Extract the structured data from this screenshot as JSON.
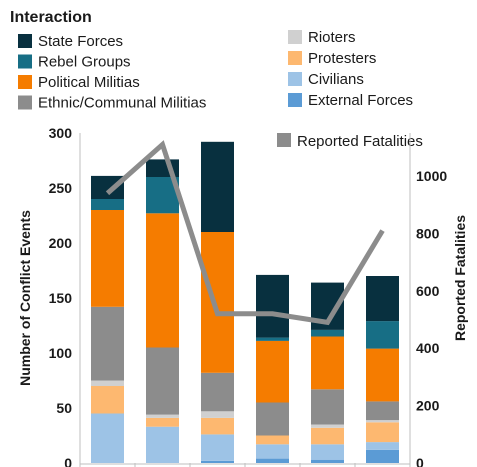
{
  "chart_data": {
    "type": "bar",
    "stacked": true,
    "legend_title": "Interaction",
    "legend_placement": "top",
    "categories": [
      "",
      "",
      "",
      "",
      "",
      ""
    ],
    "series": [
      {
        "name": "External Forces",
        "color": "#5b9bd5",
        "values": [
          0,
          0,
          2,
          4,
          3,
          12
        ]
      },
      {
        "name": "Civilians",
        "color": "#9dc3e6",
        "values": [
          45,
          33,
          24,
          13,
          14,
          7
        ]
      },
      {
        "name": "Protesters",
        "color": "#fdb870",
        "values": [
          25,
          8,
          15,
          8,
          15,
          18
        ]
      },
      {
        "name": "Rioters",
        "color": "#d0d0d0",
        "values": [
          5,
          3,
          6,
          0,
          3,
          2
        ]
      },
      {
        "name": "Ethnic/Communal Militias",
        "color": "#8c8c8c",
        "values": [
          67,
          61,
          35,
          30,
          32,
          17
        ]
      },
      {
        "name": "Political Militias",
        "color": "#f57c00",
        "values": [
          88,
          122,
          128,
          56,
          48,
          48
        ]
      },
      {
        "name": "Rebel Groups",
        "color": "#176e85",
        "values": [
          10,
          33,
          0,
          3,
          6,
          25
        ]
      },
      {
        "name": "State Forces",
        "color": "#08303f",
        "values": [
          21,
          16,
          82,
          57,
          43,
          41
        ]
      }
    ],
    "line_series": {
      "name": "Reported Fatalities",
      "color": "#8c8c8c",
      "axis": "right",
      "values": [
        940,
        1110,
        520,
        520,
        490,
        810
      ]
    },
    "ylabel": "Number of Conflict Events",
    "ylim": [
      0,
      300
    ],
    "yticks": [
      0,
      50,
      100,
      150,
      200,
      250,
      300
    ],
    "y2label": "Reported Fatalities",
    "y2lim": [
      0,
      1150
    ],
    "y2ticks": [
      0,
      200,
      400,
      600,
      800,
      1000
    ],
    "grid": false
  }
}
